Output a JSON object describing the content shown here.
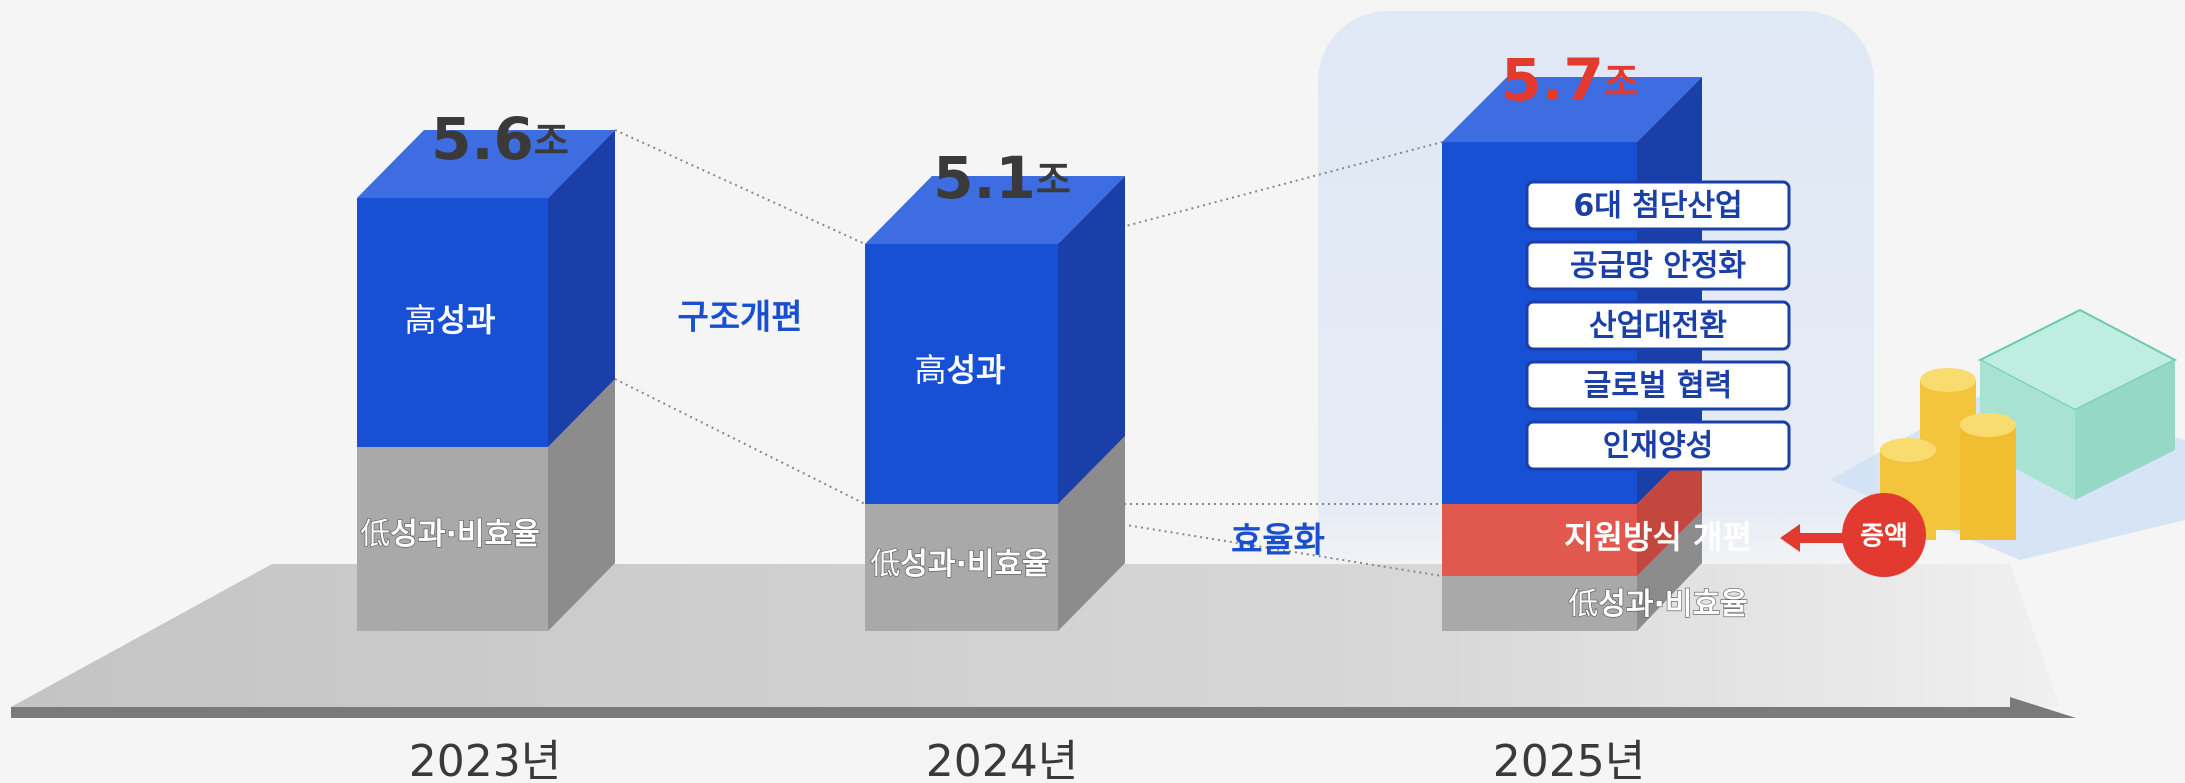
{
  "bars": [
    {
      "total": "5.6",
      "unit": "조",
      "high": {
        "prefix": "高",
        "label": "성과"
      },
      "low": {
        "prefix": "低",
        "label": "성과·비효율"
      },
      "year": "2023년"
    },
    {
      "total": "5.1",
      "unit": "조",
      "high": {
        "prefix": "高",
        "label": "성과"
      },
      "low": {
        "prefix": "低",
        "label": "성과·비효율"
      },
      "year": "2024년"
    },
    {
      "total": "5.7",
      "unit": "조",
      "items": [
        "6대 첨단산업",
        "공급망 안정화",
        "산업대전환",
        "글로벌 협력",
        "인재양성"
      ],
      "reform": "지원방식 개편",
      "increase": "증액",
      "low": {
        "prefix": "低",
        "label": "성과·비효율"
      },
      "year": "2025년"
    }
  ],
  "notes": {
    "restructure": "구조개편",
    "efficiency": "효율화"
  }
}
